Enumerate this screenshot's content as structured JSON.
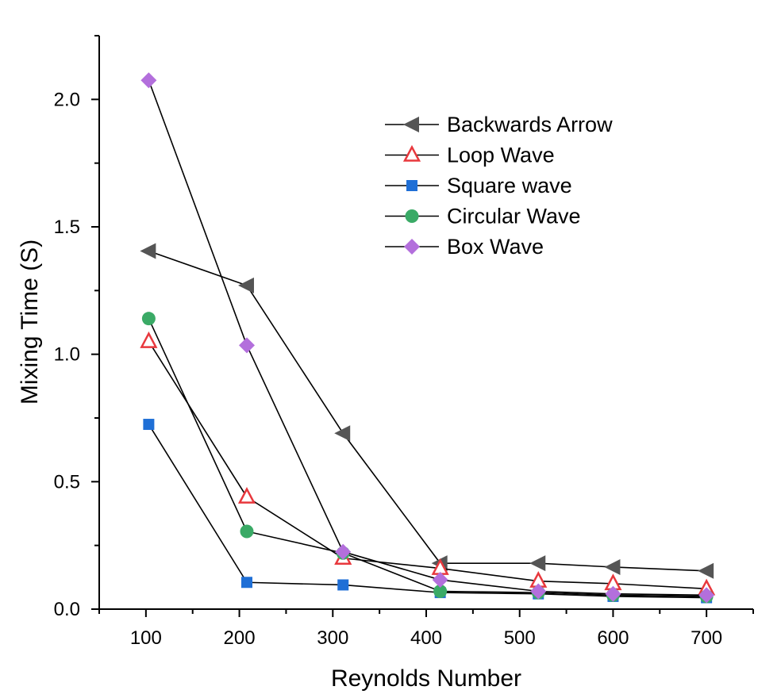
{
  "chart_data": {
    "type": "line",
    "xlabel": "Reynolds Number",
    "ylabel": "Mixing Time (S)",
    "xlim": [
      50,
      750
    ],
    "ylim": [
      0,
      2.25
    ],
    "x_ticks": [
      100,
      200,
      300,
      400,
      500,
      600,
      700
    ],
    "x_tick_labels": [
      "100",
      "200",
      "300",
      "400",
      "500",
      "600",
      "700"
    ],
    "y_ticks": [
      0,
      0.5,
      1.0,
      1.5,
      2.0
    ],
    "y_tick_labels": [
      "0.0",
      "0.5",
      "1.0",
      "1.5",
      "2.0"
    ],
    "grid": false,
    "legend_position": "top-right",
    "series": [
      {
        "name": "Backwards Arrow",
        "marker": "triangle-left",
        "color": "#555555",
        "x": [
          103,
          208,
          311,
          415,
          520,
          600,
          700
        ],
        "y": [
          1.405,
          1.27,
          0.69,
          0.18,
          0.18,
          0.165,
          0.15
        ]
      },
      {
        "name": "Loop Wave",
        "marker": "triangle-up-open",
        "color": "#e8383d",
        "x": [
          103,
          208,
          311,
          415,
          520,
          600,
          700
        ],
        "y": [
          1.05,
          0.44,
          0.2,
          0.16,
          0.11,
          0.1,
          0.08
        ]
      },
      {
        "name": "Square wave",
        "marker": "square",
        "color": "#1f6fd6",
        "x": [
          103,
          208,
          311,
          415,
          520,
          600,
          700
        ],
        "y": [
          0.725,
          0.105,
          0.095,
          0.065,
          0.06,
          0.05,
          0.045
        ]
      },
      {
        "name": "Circular Wave",
        "marker": "circle",
        "color": "#3aaa66",
        "x": [
          103,
          208,
          311,
          415,
          520,
          600,
          700
        ],
        "y": [
          1.14,
          0.305,
          0.22,
          0.07,
          0.065,
          0.055,
          0.05
        ]
      },
      {
        "name": "Box Wave",
        "marker": "diamond",
        "color": "#b36fdc",
        "x": [
          103,
          208,
          311,
          415,
          520,
          600,
          700
        ],
        "y": [
          2.075,
          1.035,
          0.225,
          0.115,
          0.07,
          0.06,
          0.055
        ]
      }
    ]
  }
}
